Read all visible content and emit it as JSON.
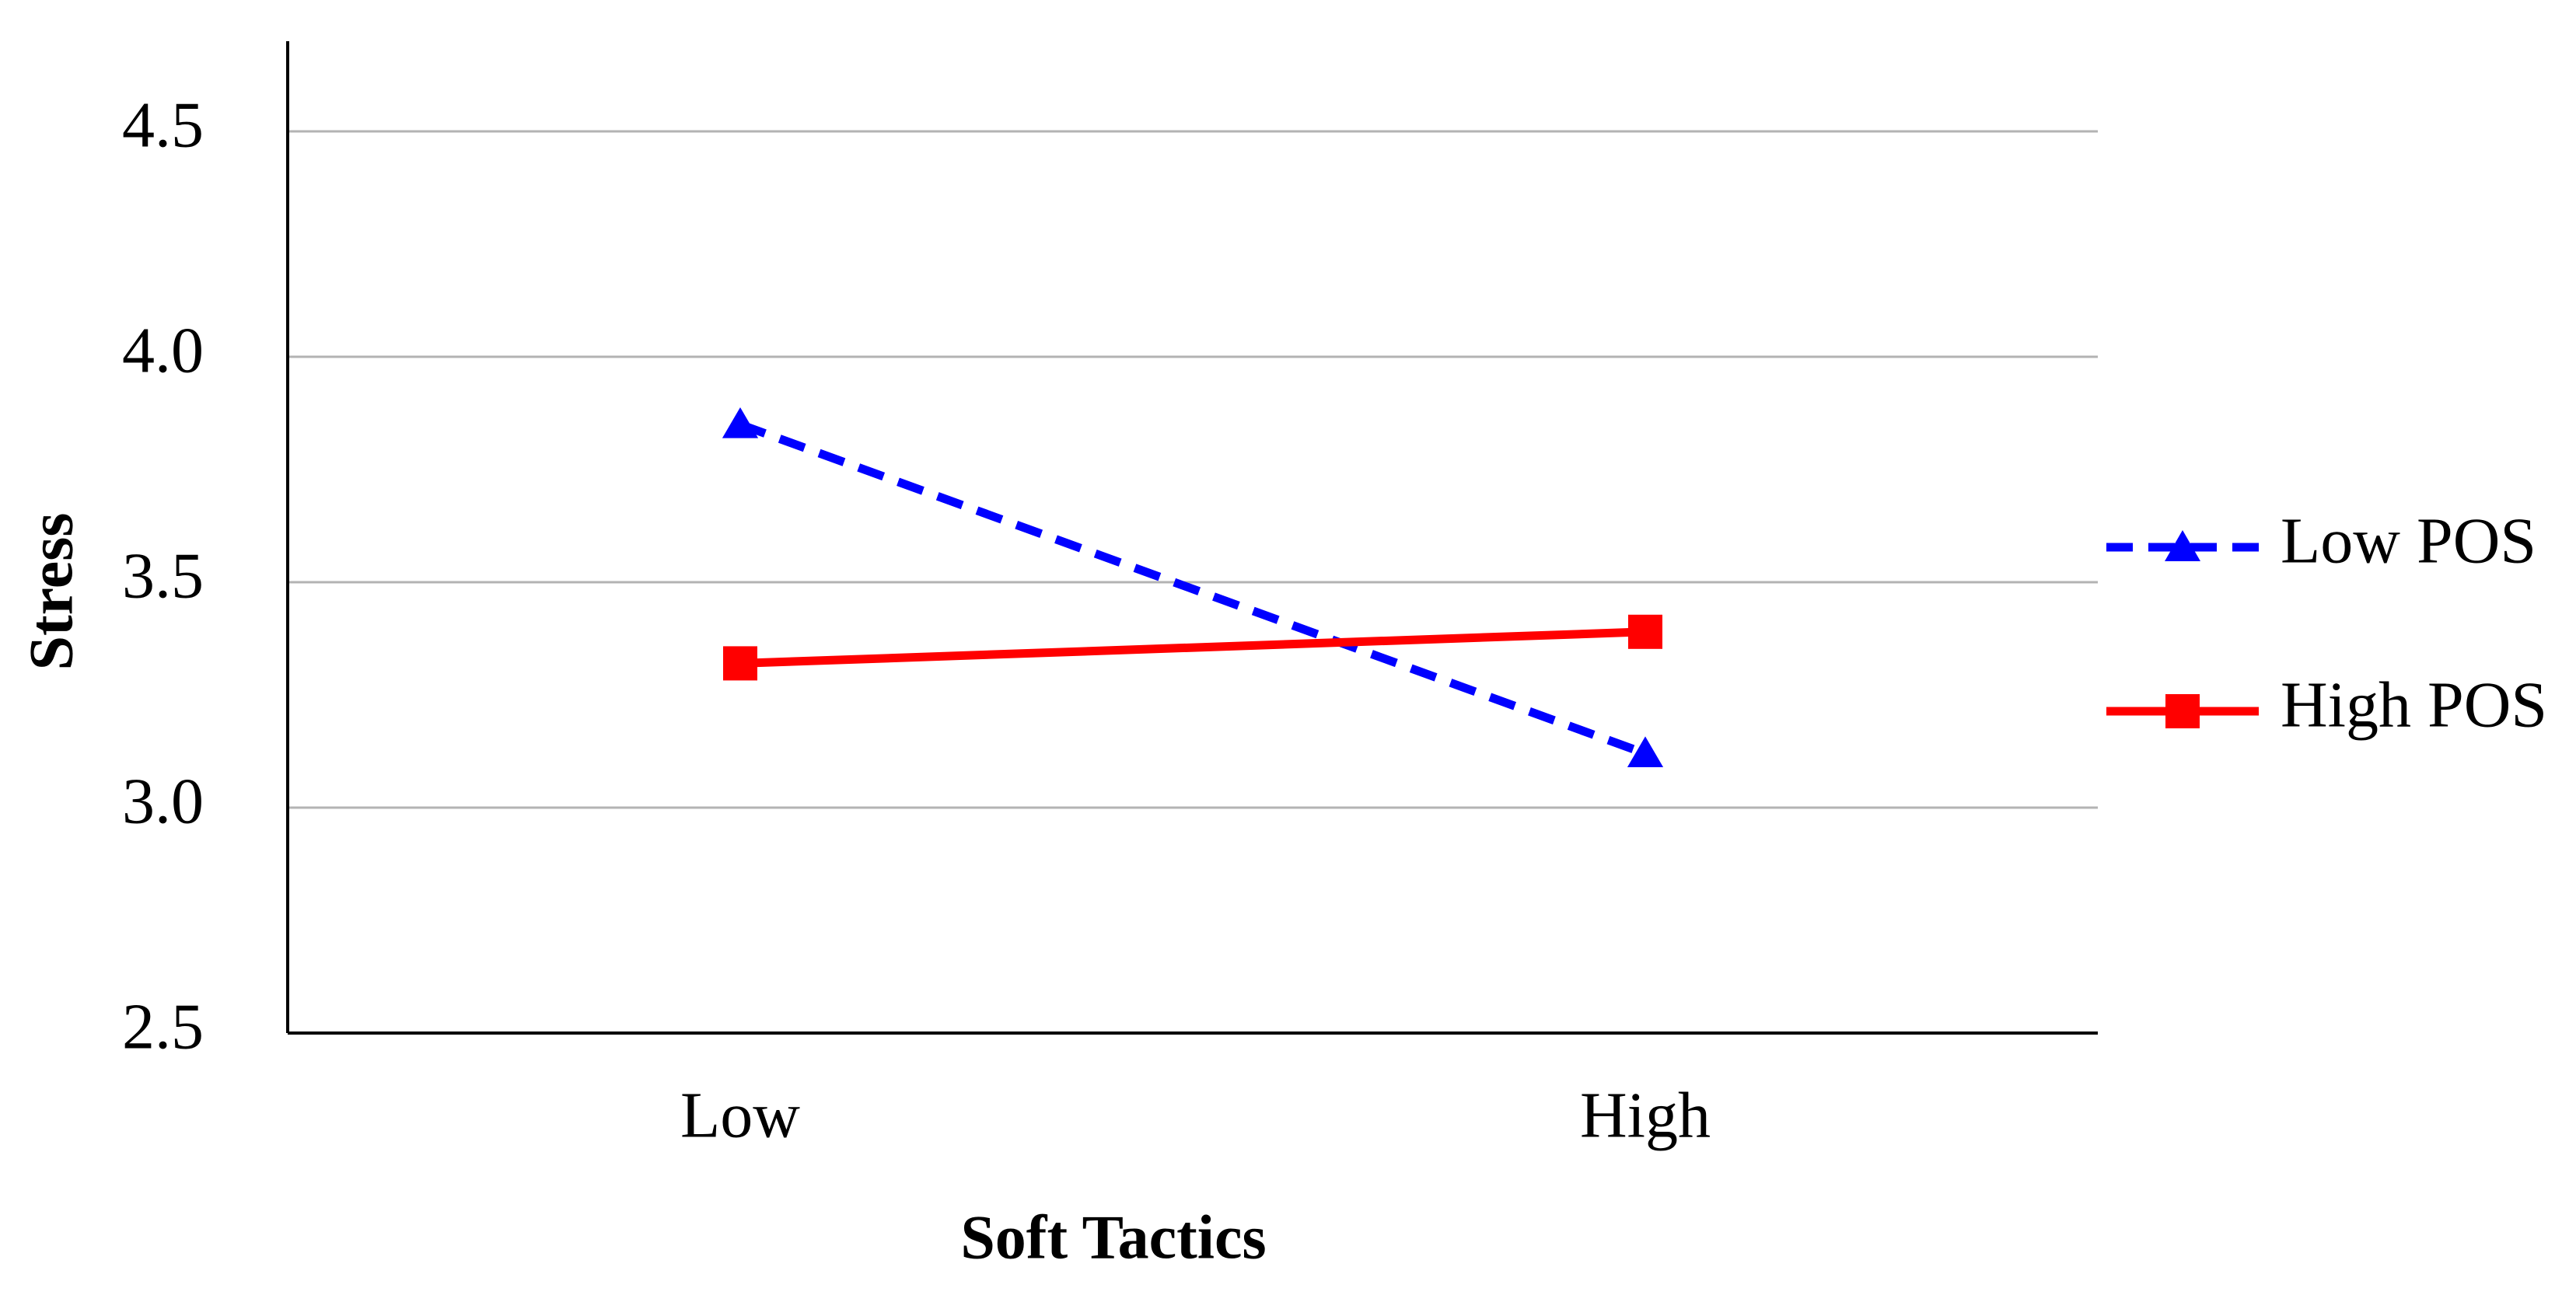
{
  "chart_data": {
    "type": "line",
    "x_label": "Soft Tactics",
    "y_label": "Stress",
    "categories": [
      "Low",
      "High"
    ],
    "series": [
      {
        "name": "Low POS",
        "color": "#0000ff",
        "line_style": "dashed",
        "marker": "triangle",
        "values": [
          3.85,
          3.12
        ]
      },
      {
        "name": "High POS",
        "color": "#ff0000",
        "line_style": "solid",
        "marker": "square",
        "values": [
          3.32,
          3.39
        ]
      }
    ],
    "ylim": [
      2.5,
      4.7
    ],
    "yticks": [
      2.5,
      {
        "value": 3,
        "label": "3.0"
      },
      3.5,
      {
        "value": 4,
        "label": "4.0"
      },
      4.5
    ],
    "grid": true,
    "legend": "right"
  }
}
